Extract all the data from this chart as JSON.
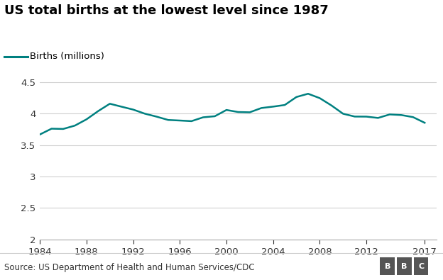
{
  "title": "US total births at the lowest level since 1987",
  "legend_label": "Births (millions)",
  "line_color": "#008080",
  "source_text": "Source: US Department of Health and Human Services/CDC",
  "years": [
    1984,
    1985,
    1986,
    1987,
    1988,
    1989,
    1990,
    1991,
    1992,
    1993,
    1994,
    1995,
    1996,
    1997,
    1998,
    1999,
    2000,
    2001,
    2002,
    2003,
    2004,
    2005,
    2006,
    2007,
    2008,
    2009,
    2010,
    2011,
    2012,
    2013,
    2014,
    2015,
    2016,
    2017
  ],
  "births": [
    3.669,
    3.761,
    3.757,
    3.81,
    3.91,
    4.041,
    4.158,
    4.111,
    4.065,
    4.0,
    3.953,
    3.9,
    3.891,
    3.881,
    3.942,
    3.959,
    4.059,
    4.026,
    4.022,
    4.09,
    4.112,
    4.138,
    4.265,
    4.317,
    4.247,
    4.131,
    3.999,
    3.954,
    3.953,
    3.932,
    3.988,
    3.978,
    3.945,
    3.855
  ],
  "xlim": [
    1984,
    2018
  ],
  "ylim": [
    2.0,
    4.65
  ],
  "yticks": [
    2.0,
    2.5,
    3.0,
    3.5,
    4.0,
    4.5
  ],
  "xticks": [
    1984,
    1988,
    1992,
    1996,
    2000,
    2004,
    2008,
    2012,
    2017
  ],
  "background_color": "#ffffff",
  "grid_color": "#d0d0d0",
  "title_fontsize": 13,
  "label_fontsize": 9.5,
  "tick_fontsize": 9.5,
  "source_fontsize": 8.5,
  "bbc_letters": [
    "B",
    "B",
    "C"
  ]
}
